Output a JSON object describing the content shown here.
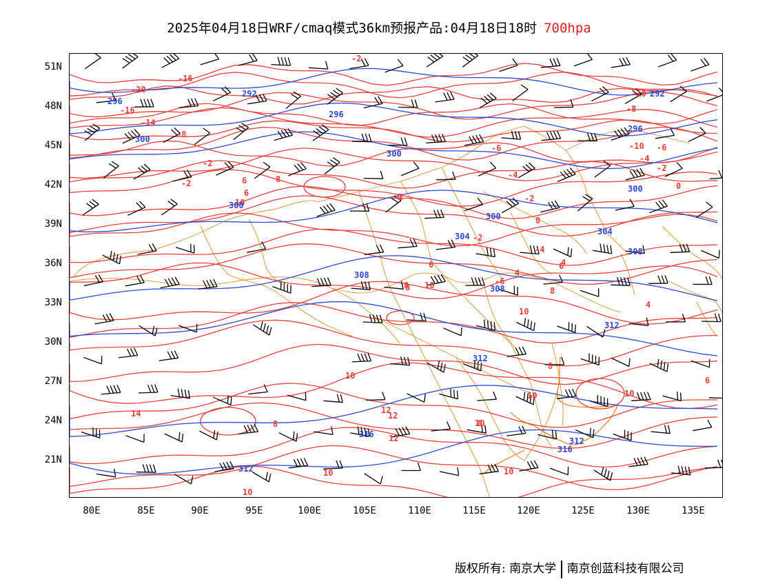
{
  "title": {
    "main": "2025年04月18日WRF/cmaq模式36km预报产品:04月18日18时",
    "level": "700hpa",
    "level_color": "#e02020"
  },
  "axes": {
    "lat_labels": [
      "51N",
      "48N",
      "45N",
      "42N",
      "39N",
      "36N",
      "33N",
      "30N",
      "27N",
      "24N",
      "21N"
    ],
    "lon_labels": [
      "80E",
      "85E",
      "90E",
      "95E",
      "100E",
      "105E",
      "110E",
      "115E",
      "120E",
      "125E",
      "130E",
      "135E"
    ]
  },
  "colors": {
    "temperature": "#e8403a",
    "geopotential": "#2c49d8",
    "borders": "#e0902a",
    "barbs": "#000000"
  },
  "contour_labels": {
    "temperature": [
      "-2",
      "-20",
      "-16",
      "-16",
      "-14",
      "-8",
      "-2",
      "-2",
      "-4",
      "-6",
      "-10",
      "-8",
      "-10",
      "-6",
      "-4",
      "-2",
      "0",
      "-2",
      "0",
      "-4",
      "-2",
      "-6",
      "-2",
      "0",
      "6",
      "10",
      "8",
      "6",
      "10",
      "4",
      "6",
      "8",
      "6",
      "4",
      "8",
      "10",
      "8",
      "10",
      "12",
      "12",
      "12",
      "10",
      "10",
      "10",
      "8",
      "8",
      "10",
      "14",
      "10",
      "10",
      "4",
      "6",
      "8"
    ],
    "geopotential": [
      "292",
      "296",
      "300",
      "300",
      "300",
      "296",
      "292",
      "296",
      "300",
      "304",
      "300",
      "304",
      "308",
      "308",
      "308",
      "312",
      "312",
      "312",
      "316",
      "316",
      "312"
    ]
  },
  "footer": {
    "copyright": "版权所有: 南京大学",
    "company": "南京创蓝科技有限公司"
  }
}
